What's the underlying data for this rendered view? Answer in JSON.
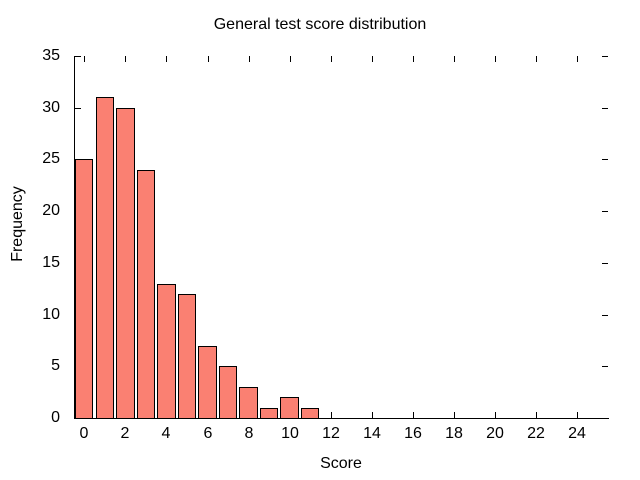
{
  "chart_data": {
    "type": "bar",
    "title": "General test score distribution",
    "xlabel": "Score",
    "ylabel": "Frequency",
    "categories": [
      0,
      1,
      2,
      3,
      4,
      5,
      6,
      7,
      8,
      9,
      10,
      11
    ],
    "values": [
      25,
      31,
      30,
      24,
      13,
      12,
      7,
      5,
      3,
      1,
      2,
      1
    ],
    "bar_width": 0.9,
    "xlim": [
      -0.5,
      25.5
    ],
    "ylim": [
      0,
      35
    ],
    "x_ticks": [
      0,
      2,
      4,
      6,
      8,
      10,
      12,
      14,
      16,
      18,
      20,
      22,
      24
    ],
    "y_ticks": [
      0,
      5,
      10,
      15,
      20,
      25,
      30,
      35
    ],
    "grid": false,
    "tick_style": "inward, mirrored on top and right edges",
    "spines": [
      "left",
      "bottom"
    ],
    "colors": {
      "bar_fill": "#fa8072",
      "bar_edge": "#000000",
      "axis": "#000000",
      "text": "#000000",
      "background": "#ffffff"
    }
  }
}
